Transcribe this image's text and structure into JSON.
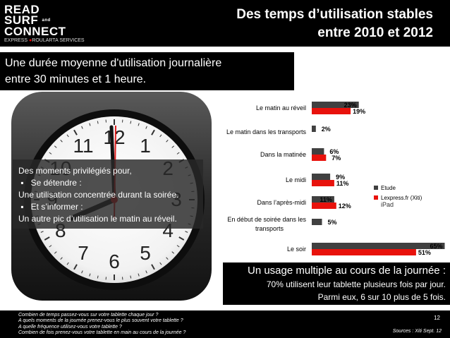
{
  "brand": {
    "line1": "READ",
    "line2": "SURF",
    "line2_small": "and",
    "line3": "CONNECT",
    "line4_express": "EXPRESS",
    "line4_roularta": "ROULARTA",
    "line4_services": "SERVICES"
  },
  "title": {
    "line1": "Des temps d’utilisation stables",
    "line2": "entre 2010 et 2012"
  },
  "subtitle": {
    "line1": "Une durée moyenne d'utilisation journalière",
    "line2": "entre 30 minutes et 1 heure."
  },
  "clock": {
    "numbers": [
      "12",
      "1",
      "2",
      "3",
      "4",
      "5",
      "6",
      "7",
      "8",
      "9",
      "10",
      "11"
    ]
  },
  "overlay": {
    "lines": [
      "Des moments privilégiés pour,",
      "Se détendre :",
      "Une utilisation concentrée durant la soirée.",
      "Et s’informer :",
      "Un autre pic d’utilisation le matin au réveil."
    ]
  },
  "chart_data": {
    "type": "bar",
    "orientation": "horizontal",
    "categories": [
      "Le matin au réveil",
      "Le matin dans les transports",
      "Dans la matinée",
      "Le midi",
      "Dans l’après-midi",
      "En début de soirée dans les transports",
      "Le soir"
    ],
    "category_lines": [
      [
        "Le matin au réveil"
      ],
      [
        "Le matin dans les transports"
      ],
      [
        "Dans la matinée"
      ],
      [
        "Le midi"
      ],
      [
        "Dans l’après-midi"
      ],
      [
        "En début de soirée dans les",
        "transports"
      ],
      [
        "Le soir"
      ]
    ],
    "series": [
      {
        "name": "Etude",
        "values": [
          23,
          2,
          6,
          9,
          11,
          5,
          65
        ],
        "labels": [
          "23%",
          "2%",
          "6%",
          "9%",
          "11%",
          "5%",
          "65%"
        ],
        "color": "#404040"
      },
      {
        "name": "Lexpress.fr (Xiti)",
        "values": [
          19,
          null,
          7,
          11,
          12,
          null,
          51
        ],
        "labels": [
          "19%",
          "",
          "7%",
          "11%",
          "12%",
          "",
          "51%"
        ],
        "color": "#e8120c"
      }
    ],
    "xlim": [
      0,
      70
    ],
    "legend_position": "right",
    "legend_sub": "iPad"
  },
  "usage": {
    "heading": "Un usage multiple au cours de la journée :",
    "line1": "70% utilisent leur tablette plusieurs fois par jour.",
    "line2": "Parmi eux, 6 sur 10 plus de 5 fois."
  },
  "footer": {
    "questions": [
      "Combien de temps passez-vous sur votre tablette chaque jour ?",
      "A quels moments de la journée prenez-vous le plus souvent votre tablette ?",
      "A quelle fréquence utilisez-vous votre tablette ?",
      "Combien de fois prenez-vous votre tablette en main au cours de la journée ?"
    ],
    "page": "12",
    "source": "Sources :  Xiti Sept. 12"
  }
}
